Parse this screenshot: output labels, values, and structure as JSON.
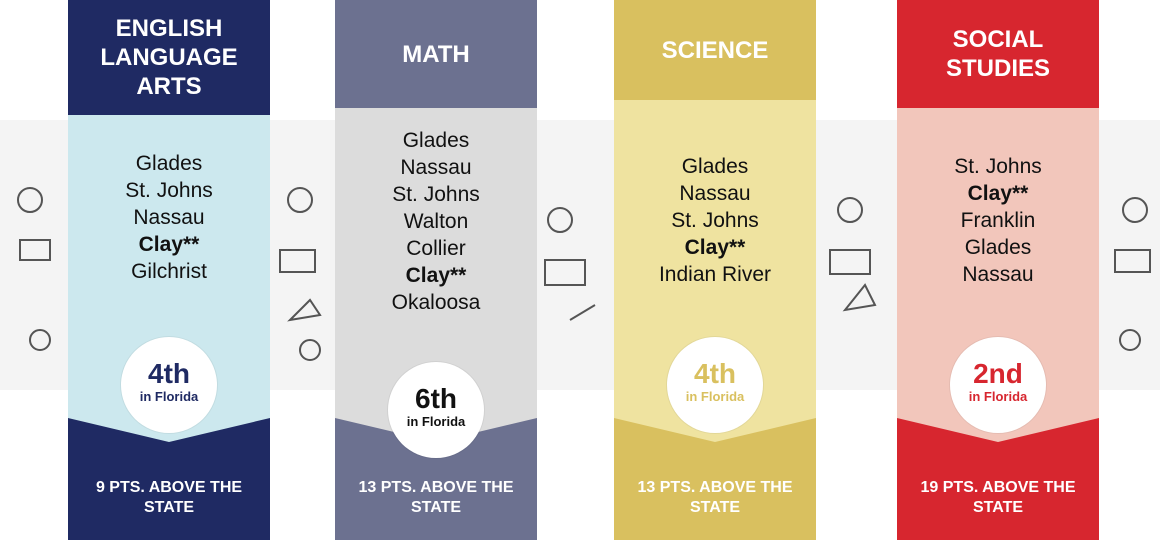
{
  "columns": [
    {
      "title": "ENGLISH LANGUAGE ARTS",
      "districts": [
        "Glades",
        "St. Johns",
        "Nassau",
        "Clay**",
        "Gilchrist"
      ],
      "rank": "4th",
      "rank_note": "in Florida",
      "footer": "9 PTS. ABOVE THE STATE"
    },
    {
      "title": "MATH",
      "districts": [
        "Glades",
        "Nassau",
        "St. Johns",
        "Walton",
        "Collier",
        "Clay**",
        "Okaloosa"
      ],
      "rank": "6th",
      "rank_note": "in Florida",
      "footer": "13 PTS. ABOVE THE STATE"
    },
    {
      "title": "SCIENCE",
      "districts": [
        "Glades",
        "Nassau",
        "St. Johns",
        "Clay**",
        "Indian River"
      ],
      "rank": "4th",
      "rank_note": "in Florida",
      "footer": "13 PTS. ABOVE THE STATE"
    },
    {
      "title": "SOCIAL STUDIES",
      "districts": [
        "St. Johns",
        "Clay**",
        "Franklin",
        "Glades",
        "Nassau"
      ],
      "rank": "2nd",
      "rank_note": "in Florida",
      "footer": "19 PTS. ABOVE THE STATE"
    }
  ]
}
